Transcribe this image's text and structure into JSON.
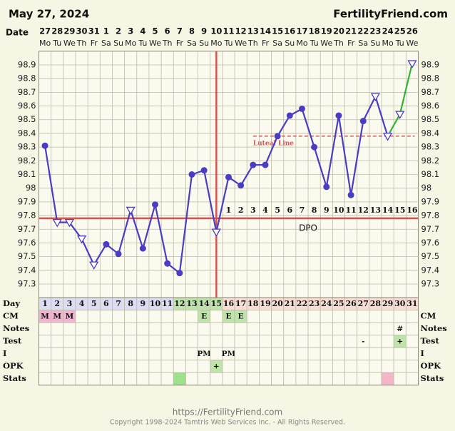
{
  "chart_data": {
    "type": "line",
    "title": "May 27, 2024",
    "site": "FertilityFriend.com",
    "date_label": "Date",
    "dates": [
      27,
      28,
      29,
      30,
      31,
      1,
      2,
      3,
      4,
      5,
      6,
      7,
      8,
      9,
      10,
      11,
      12,
      13,
      14,
      15,
      16,
      17,
      18,
      19,
      20,
      21,
      22,
      23,
      24,
      25,
      26
    ],
    "weekdays": [
      "Mo",
      "Tu",
      "We",
      "Th",
      "Fr",
      "Sa",
      "Su",
      "Mo",
      "Tu",
      "We",
      "Th",
      "Fr",
      "Sa",
      "Su",
      "Mo",
      "Tu",
      "We",
      "Th",
      "Fr",
      "Sa",
      "Su",
      "Mo",
      "Tu",
      "We",
      "Th",
      "Fr",
      "Sa",
      "Su",
      "Mo",
      "Tu",
      "We"
    ],
    "categories": [
      1,
      2,
      3,
      4,
      5,
      6,
      7,
      8,
      9,
      10,
      11,
      12,
      13,
      14,
      15,
      16,
      17,
      18,
      19,
      20,
      21,
      22,
      23,
      24,
      25,
      26,
      27,
      28,
      29,
      30,
      31
    ],
    "values": [
      98.31,
      97.75,
      97.75,
      97.63,
      97.44,
      97.59,
      97.52,
      97.84,
      97.56,
      97.88,
      97.45,
      97.38,
      98.1,
      98.13,
      97.68,
      98.08,
      98.02,
      98.17,
      98.17,
      98.38,
      98.53,
      98.58,
      98.3,
      98.01,
      98.53,
      97.95,
      98.49,
      98.67,
      98.38,
      98.54,
      98.91
    ],
    "color": "#4b3cc4",
    "markers": [
      "filled",
      "open",
      "open",
      "open",
      "open",
      "filled",
      "filled",
      "open",
      "filled",
      "filled",
      "filled",
      "filled",
      "filled",
      "filled",
      "open",
      "filled",
      "filled",
      "filled",
      "filled",
      "filled",
      "filled",
      "filled",
      "filled",
      "filled",
      "filled",
      "filled",
      "filled",
      "open",
      "open",
      "open",
      "open"
    ],
    "segment_colors": [
      "#4b3cc4",
      "#4b3cc4",
      "#4b3cc4",
      "#4b3cc4",
      "#4b3cc4",
      "#4b3cc4",
      "#4b3cc4",
      "#4b3cc4",
      "#4b3cc4",
      "#4b3cc4",
      "#4b3cc4",
      "#4b3cc4",
      "#4b3cc4",
      "#4b3cc4",
      "#4b3cc4",
      "#4b3cc4",
      "#4b3cc4",
      "#4b3cc4",
      "#4b3cc4",
      "#4b3cc4",
      "#4b3cc4",
      "#4b3cc4",
      "#4b3cc4",
      "#4b3cc4",
      "#4b3cc4",
      "#4b3cc4",
      "#4b3cc4",
      "#4b3cc4",
      "#33b533",
      "#33b533"
    ],
    "ylim": [
      97.2,
      99.0
    ],
    "yticks": [
      97.3,
      97.4,
      97.5,
      97.6,
      97.7,
      97.8,
      97.9,
      98.0,
      98.1,
      98.2,
      98.3,
      98.4,
      98.5,
      98.6,
      98.7,
      98.8,
      98.9
    ],
    "grid": true,
    "coverline": {
      "value": 97.78,
      "color": "#d9534f"
    },
    "ovulation_day": 15,
    "luteal_line": {
      "label": "Luteal Line",
      "value": 98.38,
      "start_day": 18,
      "color": "#e87b7b"
    },
    "dpo": {
      "label": "DPO",
      "numbers": [
        1,
        2,
        3,
        4,
        5,
        6,
        7,
        8,
        9,
        10,
        11,
        12,
        13,
        14,
        15,
        16
      ]
    },
    "table": {
      "rows": [
        {
          "label": "Day",
          "colors": [
            "#dcdcf2",
            "#dcdcf2",
            "#dcdcf2",
            "#dcdcf2",
            "#dcdcf2",
            "#dcdcf2",
            "#dcdcf2",
            "#dcdcf2",
            "#dcdcf2",
            "#dcdcf2",
            "#dcdcf2",
            "#bfe3aa",
            "#bfe3aa",
            "#bfe3aa",
            "#bfe3aa",
            "#f8ddd6",
            "#f8ddd6",
            "#f8ddd6",
            "#f8ddd6",
            "#f8ddd6",
            "#f8ddd6",
            "#f8ddd6",
            "#f8ddd6",
            "#f8ddd6",
            "#f8ddd6",
            "#f8ddd6",
            "#f8ddd6",
            "#f8ddd6",
            "#f8ddd6",
            "#f8ddd6",
            "#f8ddd6"
          ]
        },
        {
          "label": "CM",
          "texts": [
            "M",
            "M",
            "M",
            null,
            null,
            null,
            null,
            null,
            null,
            null,
            null,
            null,
            null,
            "E",
            null,
            "E",
            "E",
            null,
            null,
            null,
            null,
            null,
            null,
            null,
            null,
            null,
            null,
            null,
            null,
            null,
            null
          ],
          "colors": [
            "#f0b5cf",
            "#f0b5cf",
            "#f0b5cf",
            null,
            null,
            null,
            null,
            null,
            null,
            null,
            null,
            null,
            null,
            "#bfe3aa",
            null,
            "#bfe3aa",
            "#bfe3aa",
            null,
            null,
            null,
            null,
            null,
            null,
            null,
            null,
            null,
            null,
            null,
            null,
            null,
            null
          ]
        },
        {
          "label": "Notes",
          "texts": [
            null,
            null,
            null,
            null,
            null,
            null,
            null,
            null,
            null,
            null,
            null,
            null,
            null,
            null,
            null,
            null,
            null,
            null,
            null,
            null,
            null,
            null,
            null,
            null,
            null,
            null,
            null,
            null,
            null,
            "#",
            null
          ]
        },
        {
          "label": "Test",
          "texts": [
            null,
            null,
            null,
            null,
            null,
            null,
            null,
            null,
            null,
            null,
            null,
            null,
            null,
            null,
            null,
            null,
            null,
            null,
            null,
            null,
            null,
            null,
            null,
            null,
            null,
            null,
            "-",
            null,
            null,
            "+",
            null
          ],
          "colors": [
            null,
            null,
            null,
            null,
            null,
            null,
            null,
            null,
            null,
            null,
            null,
            null,
            null,
            null,
            null,
            null,
            null,
            null,
            null,
            null,
            null,
            null,
            null,
            null,
            null,
            null,
            null,
            null,
            null,
            "#bfe3aa",
            null
          ]
        },
        {
          "label": "I",
          "texts": [
            null,
            null,
            null,
            null,
            null,
            null,
            null,
            null,
            null,
            null,
            null,
            null,
            null,
            "PM",
            null,
            "PM",
            null,
            null,
            null,
            null,
            null,
            null,
            null,
            null,
            null,
            null,
            null,
            null,
            null,
            null,
            null
          ]
        },
        {
          "label": "OPK",
          "texts": [
            null,
            null,
            null,
            null,
            null,
            null,
            null,
            null,
            null,
            null,
            null,
            null,
            null,
            null,
            "+",
            null,
            null,
            null,
            null,
            null,
            null,
            null,
            null,
            null,
            null,
            null,
            null,
            null,
            null,
            null,
            null
          ],
          "colors": [
            null,
            null,
            null,
            null,
            null,
            null,
            null,
            null,
            null,
            null,
            null,
            null,
            null,
            null,
            "#bfe3aa",
            null,
            null,
            null,
            null,
            null,
            null,
            null,
            null,
            null,
            null,
            null,
            null,
            null,
            null,
            null,
            null
          ]
        },
        {
          "label": "Stats",
          "colors": [
            null,
            null,
            null,
            null,
            null,
            null,
            null,
            null,
            null,
            null,
            null,
            "#9fe08c",
            null,
            null,
            null,
            null,
            null,
            null,
            null,
            null,
            null,
            null,
            null,
            null,
            null,
            null,
            null,
            null,
            "#f3b5c8",
            null,
            null
          ]
        }
      ]
    },
    "footer": {
      "url": "https://FertilityFriend.com",
      "copyright": "Copyright 1998-2024 Tamtris Web Services Inc. - All Rights Reserved."
    }
  }
}
